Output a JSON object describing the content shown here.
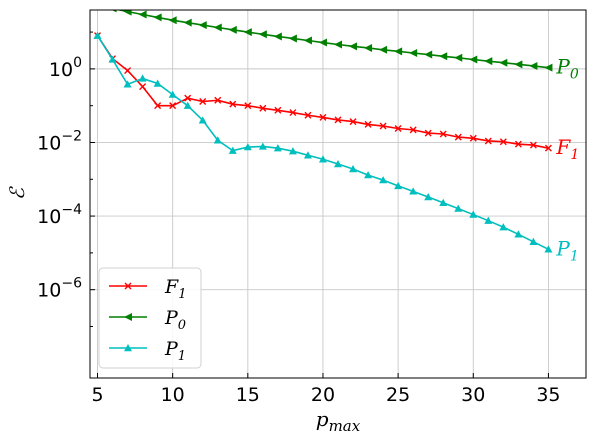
{
  "chart_data": {
    "type": "line",
    "xlabel": "p_max",
    "ylabel": "ℰ",
    "xlim": [
      4.5,
      37.5
    ],
    "ylim_log10": [
      -8.4,
      1.6
    ],
    "y_scale": "log",
    "grid": true,
    "legend_position": "lower-left",
    "x_ticks": [
      5,
      10,
      15,
      20,
      25,
      30,
      35
    ],
    "y_ticks": [
      {
        "exp": 0,
        "label": "10",
        "sup": "0"
      },
      {
        "exp": -2,
        "label": "10",
        "sup": "−2"
      },
      {
        "exp": -4,
        "label": "10",
        "sup": "−4"
      },
      {
        "exp": -6,
        "label": "10",
        "sup": "−6"
      }
    ],
    "x_tick_labels": [
      "5",
      "10",
      "15",
      "20",
      "25",
      "30",
      "35"
    ],
    "series": [
      {
        "name": "F1",
        "label_main": "F",
        "label_sub": "1",
        "color": "#ff0000",
        "marker": "x",
        "x": [
          5,
          6,
          7,
          8,
          9,
          10,
          11,
          12,
          13,
          14,
          15,
          16,
          17,
          18,
          19,
          20,
          21,
          22,
          23,
          24,
          25,
          26,
          27,
          28,
          29,
          30,
          31,
          32,
          33,
          34,
          35
        ],
        "y": [
          8,
          1.9,
          0.9,
          0.33,
          0.1,
          0.1,
          0.16,
          0.13,
          0.14,
          0.11,
          0.1,
          0.085,
          0.075,
          0.065,
          0.055,
          0.048,
          0.041,
          0.037,
          0.031,
          0.028,
          0.024,
          0.022,
          0.018,
          0.017,
          0.014,
          0.013,
          0.011,
          0.0105,
          0.009,
          0.0085,
          0.007
        ]
      },
      {
        "name": "P0",
        "label_main": "P",
        "label_sub": "0",
        "color": "#008000",
        "marker": "triangle-left",
        "x": [
          5,
          6,
          7,
          8,
          9,
          10,
          11,
          12,
          13,
          14,
          15,
          16,
          17,
          18,
          19,
          20,
          21,
          22,
          23,
          24,
          25,
          26,
          27,
          28,
          29,
          30,
          31,
          32,
          33,
          34,
          35
        ],
        "y": [
          55,
          44,
          36,
          30,
          25,
          21,
          18,
          15.5,
          13.3,
          11.5,
          10,
          8.7,
          7.6,
          6.7,
          5.9,
          5.2,
          4.6,
          4.1,
          3.7,
          3.3,
          3.0,
          2.7,
          2.45,
          2.2,
          2.0,
          1.8,
          1.62,
          1.47,
          1.33,
          1.2,
          1.08
        ]
      },
      {
        "name": "P1",
        "label_main": "P",
        "label_sub": "1",
        "color": "#00bfbf",
        "marker": "triangle-up",
        "x": [
          5,
          6,
          7,
          8,
          9,
          10,
          11,
          12,
          13,
          14,
          15,
          16,
          17,
          18,
          19,
          20,
          21,
          22,
          23,
          24,
          25,
          26,
          27,
          28,
          29,
          30,
          31,
          32,
          33,
          34,
          35
        ],
        "y": [
          8,
          1.8,
          0.38,
          0.55,
          0.4,
          0.2,
          0.1,
          0.04,
          0.0115,
          0.006,
          0.0075,
          0.0078,
          0.007,
          0.0058,
          0.0045,
          0.0035,
          0.0026,
          0.0019,
          0.0013,
          0.00095,
          0.00066,
          0.00047,
          0.00033,
          0.00023,
          0.00016,
          0.00011,
          7.5e-05,
          5e-05,
          3.2e-05,
          2e-05,
          1.25e-05
        ]
      }
    ],
    "end_labels": [
      {
        "series": 0,
        "text_main": "F",
        "text_sub": "1"
      },
      {
        "series": 1,
        "text_main": "P",
        "text_sub": "0"
      },
      {
        "series": 2,
        "text_main": "P",
        "text_sub": "1"
      }
    ]
  }
}
